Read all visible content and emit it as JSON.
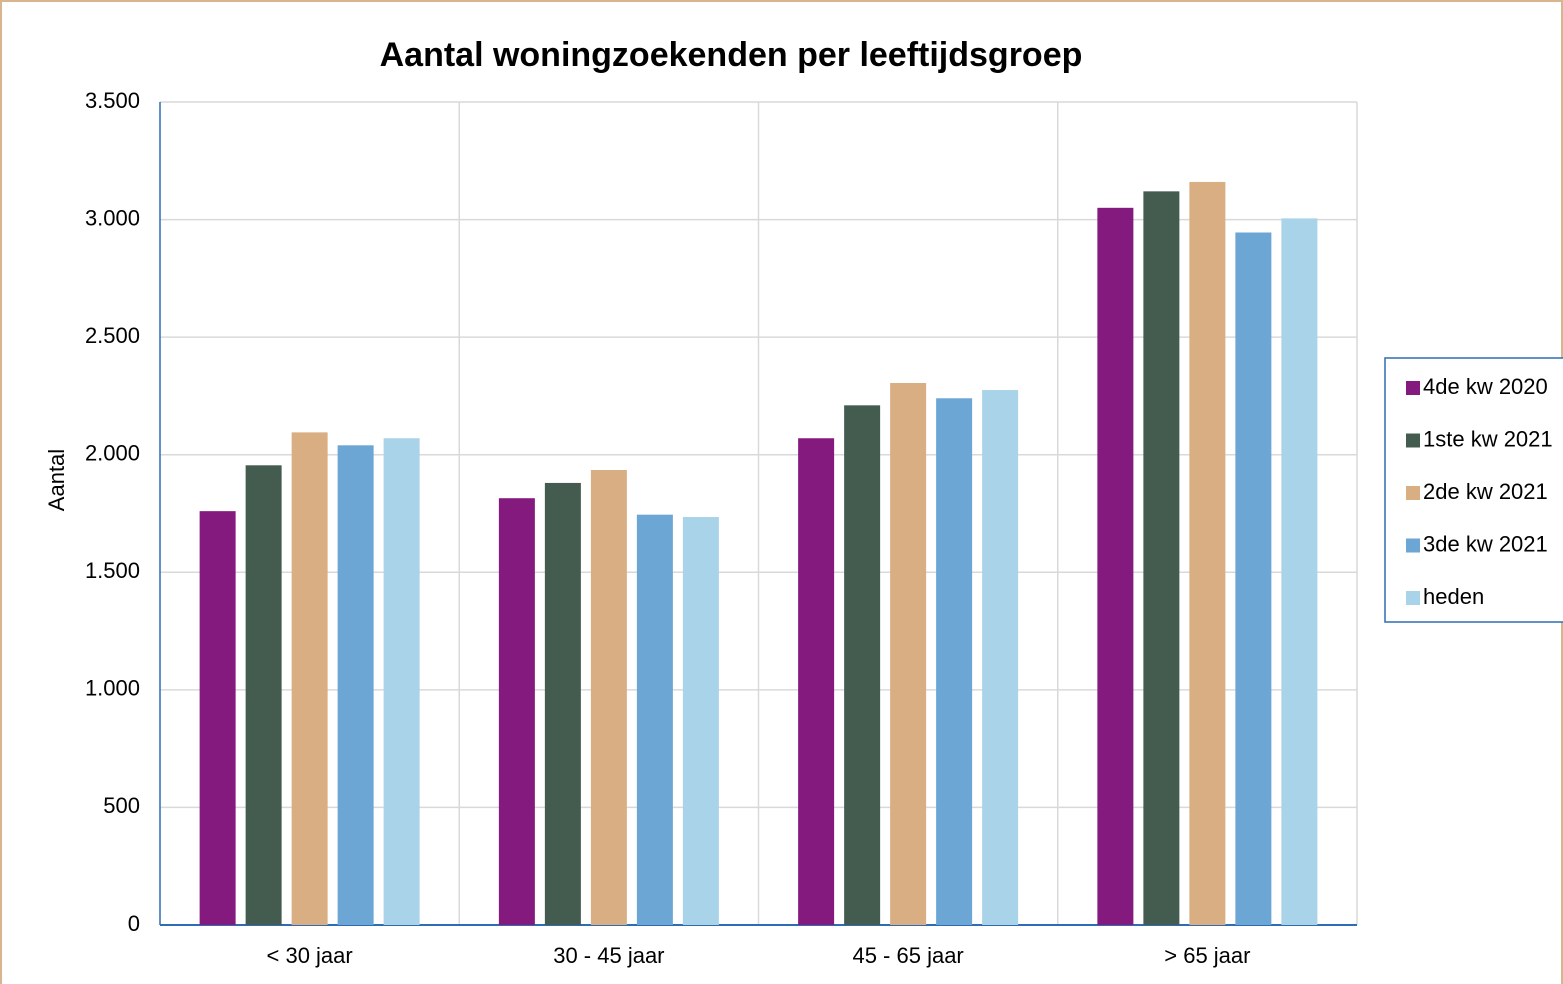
{
  "chart_data": {
    "type": "bar",
    "title": "Aantal woningzoekenden per leeftijdsgroep",
    "y_label": "Aantal",
    "categories": [
      "< 30 jaar",
      "30 - 45 jaar",
      "45 - 65 jaar",
      "> 65 jaar"
    ],
    "series": [
      {
        "name": "4de kw 2020",
        "color": "#841a7e",
        "values": [
          1760,
          1815,
          2070,
          3050
        ]
      },
      {
        "name": "1ste kw 2021",
        "color": "#445c50",
        "values": [
          1955,
          1880,
          2210,
          3120
        ]
      },
      {
        "name": "2de kw 2021",
        "color": "#d9ae82",
        "values": [
          2095,
          1935,
          2305,
          3160
        ]
      },
      {
        "name": "3de kw 2021",
        "color": "#6ca6d4",
        "values": [
          2040,
          1745,
          2240,
          2945
        ]
      },
      {
        "name": "heden",
        "color": "#a9d3e8",
        "values": [
          2070,
          1735,
          2275,
          3005
        ]
      }
    ],
    "ylim": [
      0,
      3500
    ],
    "yticks": [
      0,
      500,
      {
        "value": 1000,
        "label": "1.000"
      },
      {
        "value": 1500,
        "label": "1.500"
      },
      {
        "value": 2000,
        "label": "2.000"
      },
      {
        "value": 2500,
        "label": "2.500"
      },
      {
        "value": 3000,
        "label": "3.000"
      },
      {
        "value": 3500,
        "label": "3.500"
      }
    ],
    "grid": true,
    "legend": "right"
  }
}
